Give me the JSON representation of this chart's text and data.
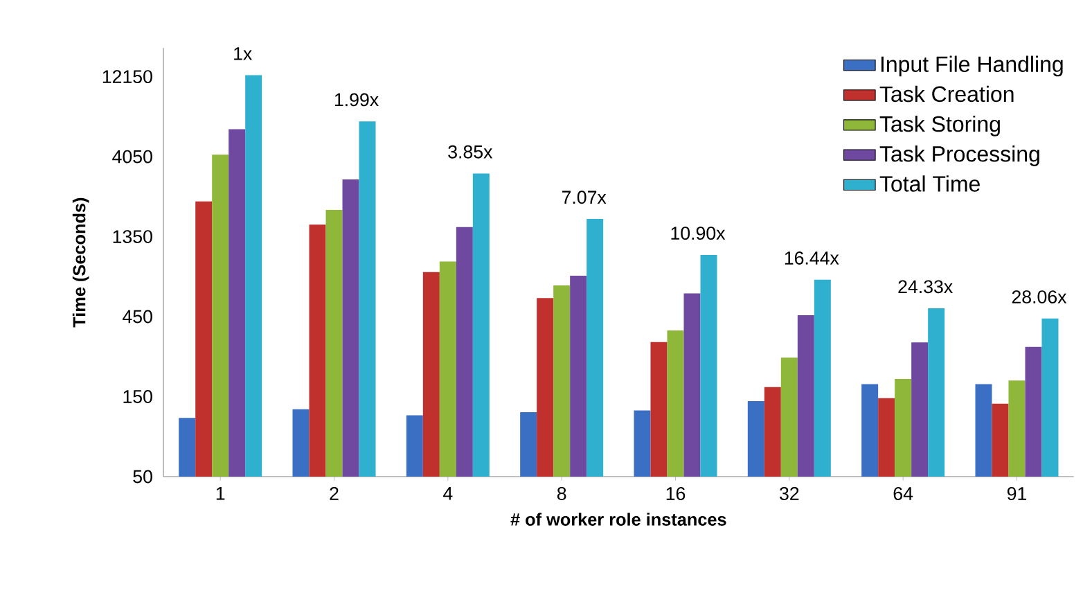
{
  "chart_data": {
    "type": "bar",
    "xlabel": "# of worker role instances",
    "ylabel": "Time (Seconds)",
    "categories": [
      "1",
      "2",
      "4",
      "8",
      "16",
      "32",
      "64",
      "91"
    ],
    "series": [
      {
        "name": "Input File Handling",
        "color": "#3a6fc4",
        "values": [
          112,
          126,
          116,
          121,
          124,
          141,
          178,
          178
        ]
      },
      {
        "name": "Task Creation",
        "color": "#c0302c",
        "values": [
          2190,
          1590,
          830,
          580,
          317,
          171,
          147,
          136
        ]
      },
      {
        "name": "Task Storing",
        "color": "#8fb83a",
        "values": [
          4160,
          1950,
          960,
          690,
          372,
          256,
          191,
          187
        ]
      },
      {
        "name": "Task Processing",
        "color": "#6f48a0",
        "values": [
          5900,
          2960,
          1540,
          790,
          619,
          459,
          316,
          297
        ]
      },
      {
        "name": "Total Time",
        "color": "#2fb0cf",
        "values": [
          12400,
          6570,
          3210,
          1720,
          1050,
          747,
          504,
          438
        ]
      }
    ],
    "log": true,
    "ylim": [
      50,
      18000
    ],
    "yticks": [
      50,
      150,
      450,
      1350,
      4050,
      12150
    ],
    "legend": "top right",
    "annotations": [
      "1x",
      "1.99x",
      "3.85x",
      "7.07x",
      "10.90x",
      "16.44x",
      "24.33x",
      "28.06x"
    ]
  }
}
